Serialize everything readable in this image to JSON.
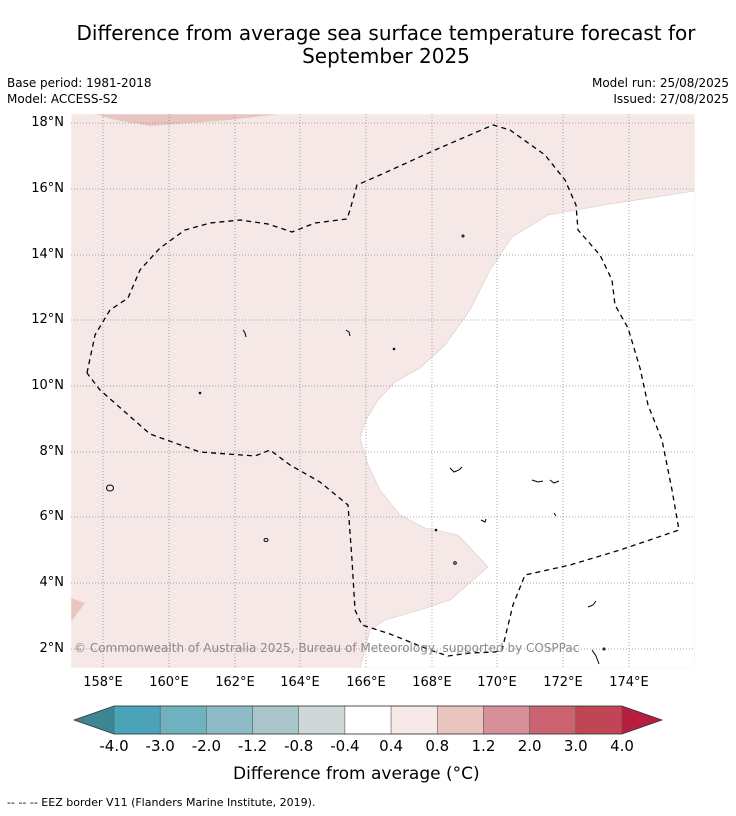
{
  "title_line1": "Difference from average sea surface temperature forecast for",
  "title_line2": "September 2025",
  "meta_left": [
    "Base period: 1981-2018",
    "Model: ACCESS-S2"
  ],
  "meta_right": [
    "Model run: 25/08/2025",
    "Issued: 27/08/2025"
  ],
  "lat_labels": [
    "18°N",
    "16°N",
    "14°N",
    "12°N",
    "10°N",
    "8°N",
    "6°N",
    "4°N",
    "2°N"
  ],
  "lon_labels": [
    "158°E",
    "160°E",
    "162°E",
    "164°E",
    "166°E",
    "168°E",
    "170°E",
    "172°E",
    "174°E"
  ],
  "copyright": "© Commonwealth of Australia 2025, Bureau of Meteorology, supported by COSPPac",
  "colorbar": {
    "ticks": [
      "-4.0",
      "-3.0",
      "-2.0",
      "-1.2",
      "-0.8",
      "-0.4",
      "0.4",
      "0.8",
      "1.2",
      "2.0",
      "3.0",
      "4.0"
    ],
    "colors": [
      "#4aa3b6",
      "#6eb2c0",
      "#8ebcc6",
      "#a8c6ca",
      "#d0d7d9",
      "#ffffff",
      "#f5e8e6",
      "#e9c5c0",
      "#d98f97",
      "#cb6470",
      "#c04555"
    ],
    "under_color": "#3d8592",
    "over_color": "#b81e40",
    "label": "Difference from average (°C)"
  },
  "legend_text": "--  --  -- EEZ border V11 (Flanders Marine Institute, 2019).",
  "map": {
    "background_anomaly_color": "#f5e8e6",
    "neutral_color": "#ffffff",
    "warm_patch_color": "#e9c5c0"
  }
}
